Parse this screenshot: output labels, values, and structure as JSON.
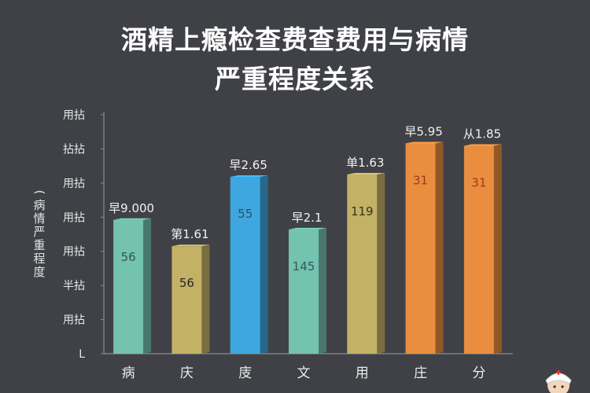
{
  "title": {
    "line1": "酒精上瘾检查费查费用与病情",
    "line2": "严重程度关系"
  },
  "colors": {
    "background": "#3f4147",
    "axis": "#8a8c92",
    "teal": "#74c2b0",
    "olive": "#c3b165",
    "blue": "#3fa7df",
    "orange": "#e98e3e"
  },
  "chart_data": {
    "type": "bar",
    "ylabel": "(病情严重程度",
    "yticks": [
      "用拈",
      "拈拈",
      "用拈",
      "用拈",
      "用拈",
      "半拈",
      "用拈",
      "L"
    ],
    "categories": [
      "病",
      "庆",
      "庋",
      "文",
      "用",
      "庄",
      "分"
    ],
    "values": [
      56,
      45,
      74,
      52,
      75,
      88,
      87
    ],
    "ylim": [
      0,
      100
    ],
    "top_labels": [
      "早9.000",
      "第1.61",
      "早2.65",
      "早2.1",
      "单1.63",
      "早5.95",
      "从1.85"
    ],
    "inner_labels": [
      "56",
      "56",
      "55",
      "145",
      "119",
      "31",
      "31"
    ],
    "bar_colors": [
      "#74c2b0",
      "#c3b165",
      "#3fa7df",
      "#74c2b0",
      "#c3b165",
      "#e98e3e",
      "#e98e3e"
    ],
    "inner_label_colors": [
      "#2f5b55",
      "#262626",
      "#2b4f70",
      "#2f5b55",
      "#3a3320",
      "#a0391c",
      "#a0391c"
    ],
    "grid": false
  }
}
